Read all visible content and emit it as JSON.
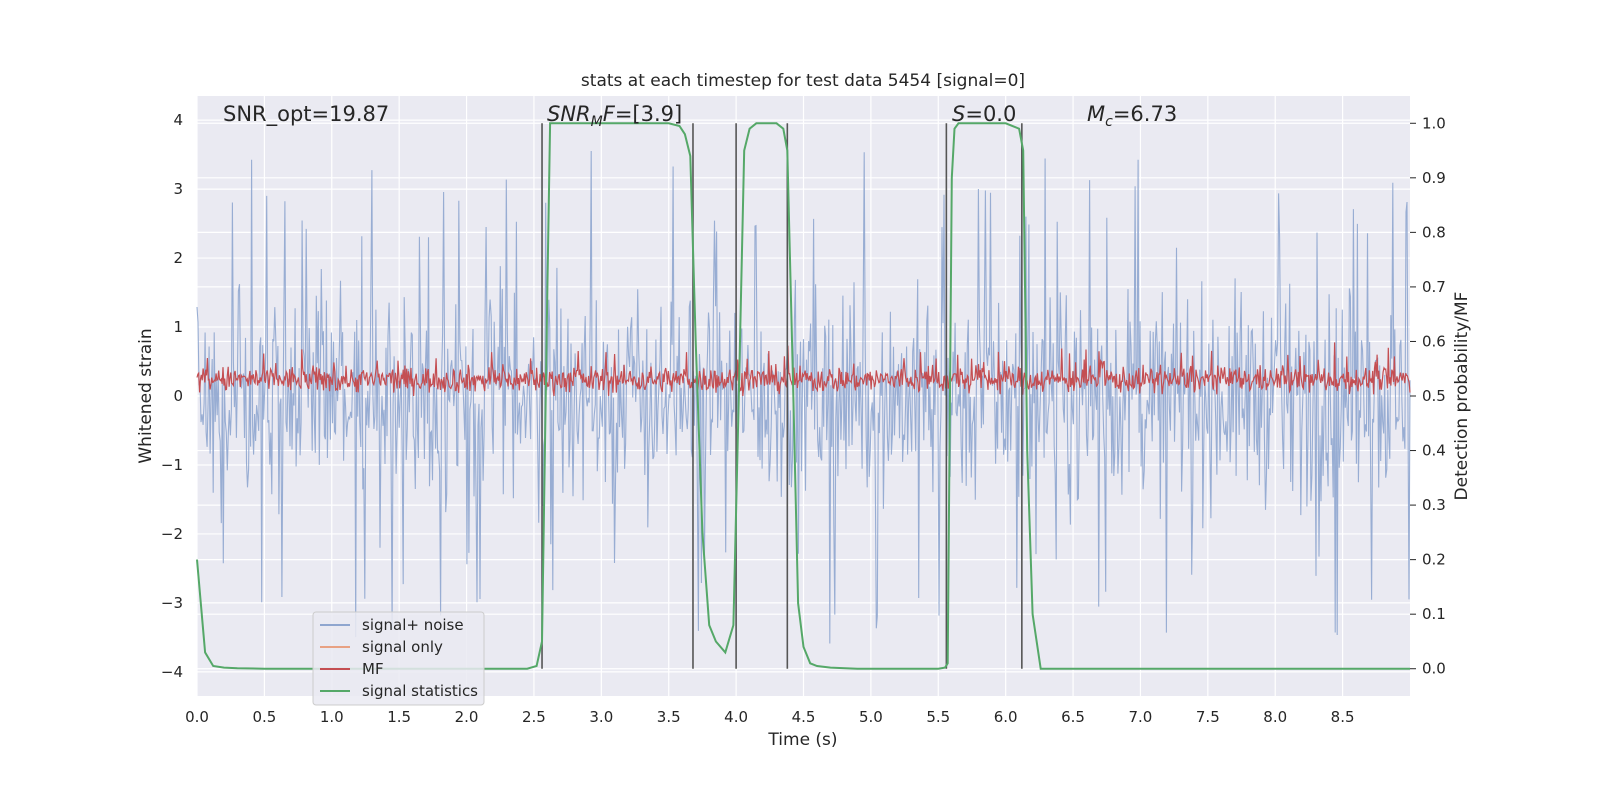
{
  "chart_data": {
    "type": "line",
    "title": "stats at each timestep for test data 5454 [signal=0]",
    "xlabel": "Time (s)",
    "ylabel_left": "Whitened strain",
    "ylabel_right": "Detection probability/MF",
    "xlim": [
      0.0,
      9.0
    ],
    "ylim_left": [
      -4.35,
      4.35
    ],
    "ylim_right": [
      -0.05,
      1.05
    ],
    "xticks": [
      "0.0",
      "0.5",
      "1.0",
      "1.5",
      "2.0",
      "2.5",
      "3.0",
      "3.5",
      "4.0",
      "4.5",
      "5.0",
      "5.5",
      "6.0",
      "6.5",
      "7.0",
      "7.5",
      "8.0",
      "8.5"
    ],
    "yticks_left": [
      "4",
      "3",
      "2",
      "1",
      "0",
      "−1",
      "−2",
      "−3",
      "−4"
    ],
    "yticks_right": [
      "1.0",
      "0.9",
      "0.8",
      "0.7",
      "0.6",
      "0.5",
      "0.4",
      "0.3",
      "0.2",
      "0.1",
      "0.0"
    ],
    "annotations": {
      "snr_opt": "SNR_opt=19.87",
      "snr_mf_base": "SNR",
      "snr_mf_sub": "M",
      "snr_mf_mid": "F",
      "snr_mf_value": "=[3.9]",
      "s_base": "S",
      "s_value": "=0.0",
      "mc_base": "M",
      "mc_sub": "c",
      "mc_value": "=6.73"
    },
    "legend": [
      "signal+ noise",
      "signal only",
      "MF",
      "signal statistics"
    ],
    "colors": {
      "noise": "#8fa6cf",
      "signal_only": "#e8a183",
      "mf": "#c44e52",
      "stat": "#55a868",
      "vline": "#555555",
      "bg": "#eaeaf2",
      "grid": "#ffffff"
    },
    "series": [
      {
        "name": "signal statistics",
        "axis": "right",
        "x": [
          0.0,
          0.06,
          0.12,
          0.2,
          0.3,
          0.5,
          1.0,
          1.5,
          2.0,
          2.3,
          2.45,
          2.52,
          2.56,
          2.6,
          2.62,
          2.7,
          3.0,
          3.5,
          3.58,
          3.62,
          3.66,
          3.7,
          3.75,
          3.8,
          3.85,
          3.92,
          3.98,
          4.02,
          4.06,
          4.1,
          4.15,
          4.2,
          4.3,
          4.35,
          4.38,
          4.42,
          4.46,
          4.5,
          4.55,
          4.6,
          4.7,
          4.9,
          5.2,
          5.5,
          5.55,
          5.57,
          5.6,
          5.62,
          5.65,
          5.7,
          6.0,
          6.1,
          6.13,
          6.16,
          6.2,
          6.26,
          6.5,
          7.0,
          8.0,
          9.0
        ],
        "values": [
          0.2,
          0.03,
          0.005,
          0.002,
          0.001,
          0.0,
          0.0,
          0.0,
          0.0,
          0.0,
          0.0,
          0.005,
          0.05,
          0.7,
          1.0,
          1.0,
          1.0,
          1.0,
          0.995,
          0.98,
          0.94,
          0.6,
          0.25,
          0.08,
          0.05,
          0.03,
          0.08,
          0.5,
          0.95,
          0.99,
          1.0,
          1.0,
          1.0,
          0.99,
          0.95,
          0.55,
          0.12,
          0.04,
          0.01,
          0.005,
          0.002,
          0.0,
          0.0,
          0.0,
          0.002,
          0.01,
          0.9,
          0.99,
          1.0,
          1.0,
          1.0,
          0.99,
          0.95,
          0.4,
          0.1,
          0.0,
          0.0,
          0.0,
          0.0,
          0.0
        ]
      },
      {
        "name": "signal+ noise",
        "axis": "left",
        "style": "noisy band, peak magnitude about 3.5, typical envelope about 1.8"
      },
      {
        "name": "MF",
        "axis": "right",
        "style": "noisy band around 0.53 on right axis"
      }
    ],
    "vlines_x": [
      2.56,
      3.68,
      4.0,
      4.38,
      5.56,
      6.12
    ]
  }
}
